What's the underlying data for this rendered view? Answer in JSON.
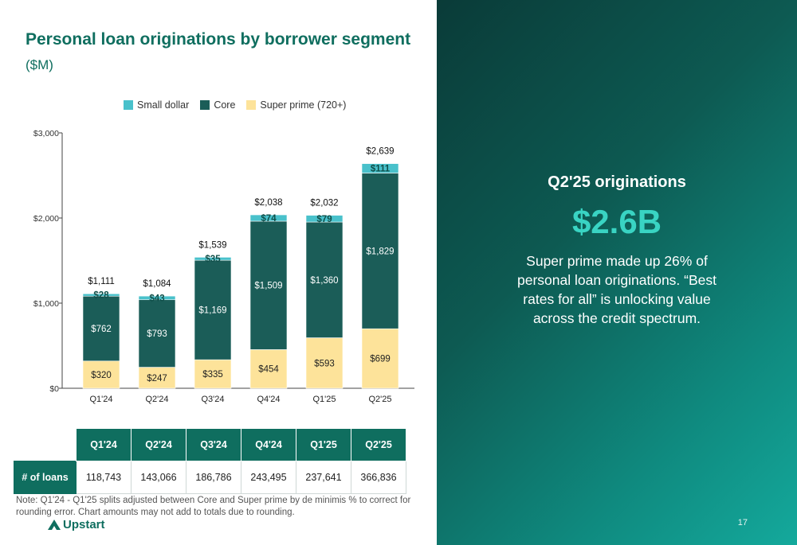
{
  "slide": {
    "title": "Personal loan originations by borrower segment",
    "subtitle": "($M)",
    "legend": [
      {
        "label": "Small dollar",
        "color": "#49c1cb"
      },
      {
        "label": "Core",
        "color": "#1b5d58"
      },
      {
        "label": "Super prime (720+)",
        "color": "#fde39a"
      }
    ],
    "table": {
      "headers": [
        "Q1'24",
        "Q2'24",
        "Q3'24",
        "Q4'24",
        "Q1'25",
        "Q2'25"
      ],
      "row_label": "# of loans",
      "values": [
        "118,743",
        "143,066",
        "186,786",
        "243,495",
        "237,641",
        "366,836"
      ]
    },
    "note": "Note: Q1'24 - Q1'25 splits adjusted between Core and Super prime by de minimis % to correct for rounding error. Chart amounts may not add to totals due to rounding.",
    "logo_text": "Upstart",
    "page_number": "17"
  },
  "panel": {
    "heading": "Q2'25 originations",
    "big_value": "$2.6B",
    "description": "Super prime made up 26% of personal loan originations. “Best rates for all” is unlocking value across the credit spectrum."
  },
  "chart_data": {
    "type": "bar",
    "stacked": true,
    "categories": [
      "Q1'24",
      "Q2'24",
      "Q3'24",
      "Q4'24",
      "Q1'25",
      "Q2'25"
    ],
    "series": [
      {
        "name": "Super prime (720+)",
        "color": "#fde39a",
        "values": [
          320,
          247,
          335,
          454,
          593,
          699
        ],
        "labels": [
          "$320",
          "$247",
          "$335",
          "$454",
          "$593",
          "$699"
        ]
      },
      {
        "name": "Core",
        "color": "#1b5d58",
        "values": [
          762,
          793,
          1169,
          1509,
          1360,
          1829
        ],
        "labels": [
          "$762",
          "$793",
          "$1,169",
          "$1,509",
          "$1,360",
          "$1,829"
        ]
      },
      {
        "name": "Small dollar",
        "color": "#49c1cb",
        "values": [
          28,
          43,
          35,
          74,
          79,
          111
        ],
        "labels": [
          "$28",
          "$43",
          "$35",
          "$74",
          "$79",
          "$111"
        ]
      }
    ],
    "totals": [
      1111,
      1084,
      1539,
      2038,
      2032,
      2639
    ],
    "total_labels": [
      "$1,111",
      "$1,084",
      "$1,539",
      "$2,038",
      "$2,032",
      "$2,639"
    ],
    "ylim": [
      0,
      3000
    ],
    "yticks": [
      0,
      1000,
      2000,
      3000
    ],
    "ytick_labels": [
      "$0",
      "$1,000",
      "$2,000",
      "$3,000"
    ],
    "legend_position": "top-center",
    "grid": false
  }
}
